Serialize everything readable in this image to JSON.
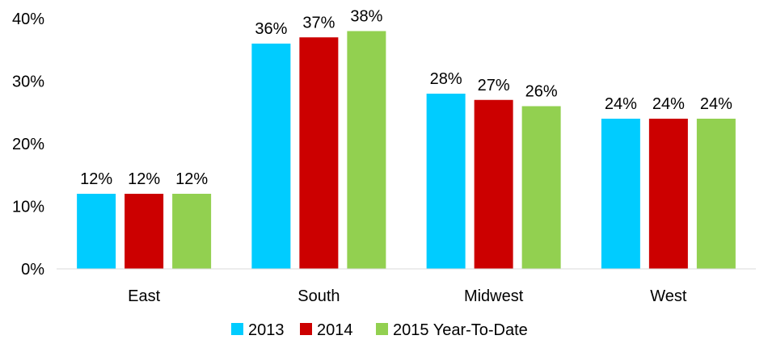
{
  "chart_data": {
    "type": "bar",
    "categories": [
      "East",
      "South",
      "Midwest",
      "West"
    ],
    "series": [
      {
        "name": "2013",
        "color": "#00CCFF",
        "values": [
          12,
          36,
          28,
          24
        ]
      },
      {
        "name": "2014",
        "color": "#CC0000",
        "values": [
          12,
          37,
          27,
          24
        ]
      },
      {
        "name": "2015 Year-To-Date",
        "color": "#92D050",
        "values": [
          12,
          38,
          26,
          24
        ]
      }
    ],
    "ylim": [
      0,
      40
    ],
    "yticks": [
      "0%",
      "10%",
      "20%",
      "30%",
      "40%"
    ],
    "data_labels": [
      [
        "12%",
        "36%",
        "28%",
        "24%"
      ],
      [
        "12%",
        "37%",
        "27%",
        "24%"
      ],
      [
        "12%",
        "38%",
        "26%",
        "24%"
      ]
    ],
    "title": "",
    "xlabel": "",
    "ylabel": "",
    "grid": false,
    "legend_position": "bottom"
  }
}
